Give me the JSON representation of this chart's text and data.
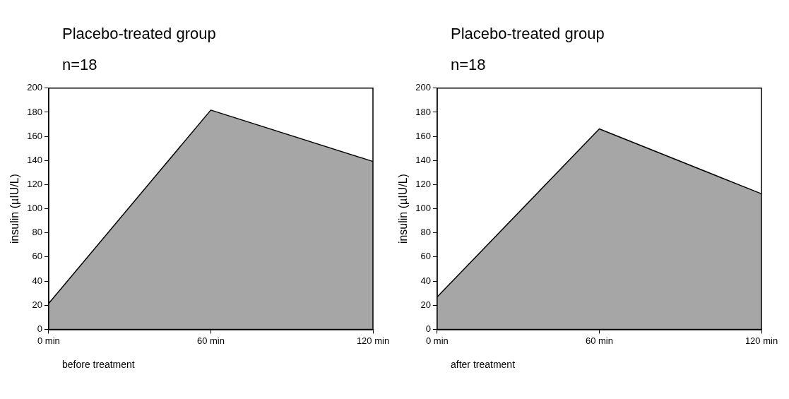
{
  "chart_data": [
    {
      "type": "area",
      "title": "Placebo-treated group",
      "subtitle": "n=18",
      "ylabel": "insulin (µIU/L)",
      "annotations": [
        "before treatment"
      ],
      "categories": [
        "0 min",
        "60 min",
        "120 min"
      ],
      "ylim": [
        0,
        200
      ],
      "yticks": [
        0,
        20,
        40,
        60,
        80,
        100,
        120,
        140,
        160,
        180,
        200
      ],
      "grid": false,
      "series": [
        {
          "color": "#a6a6a6",
          "values": [
            21.5,
            181.8,
            139.2
          ]
        }
      ]
    },
    {
      "type": "area",
      "title": "Placebo-treated group",
      "subtitle": "n=18",
      "ylabel": "insulin (µIU/L)",
      "annotations": [
        "after treatment"
      ],
      "categories": [
        "0 min",
        "60 min",
        "120 min"
      ],
      "ylim": [
        0,
        200
      ],
      "yticks": [
        0,
        20,
        40,
        60,
        80,
        100,
        120,
        140,
        160,
        180,
        200
      ],
      "grid": false,
      "series": [
        {
          "color": "#a6a6a6",
          "values": [
            26.9,
            166.2,
            112.4
          ]
        }
      ]
    }
  ]
}
